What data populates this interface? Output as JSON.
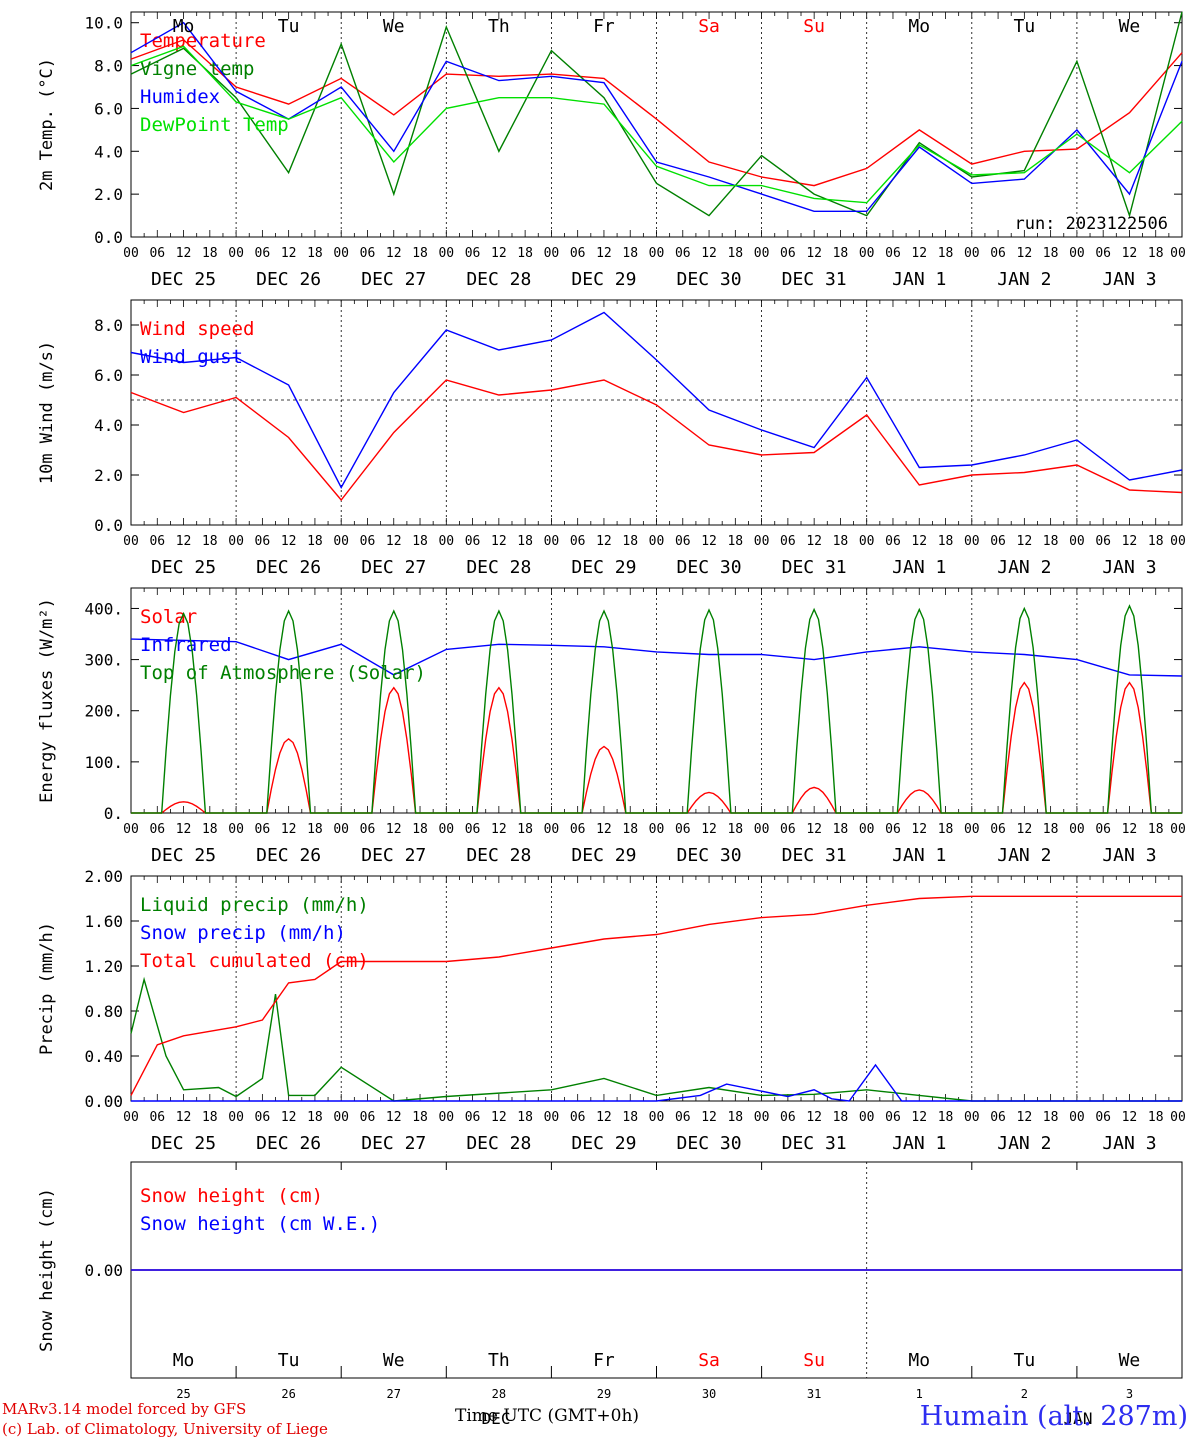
{
  "footer": {
    "model": "MARv3.14 model forced by GFS",
    "credit": "(c) Lab. of Climatology, University of Liege",
    "time_axis": "Time UTC (GMT+0h)",
    "month": "DEC",
    "month2": "JAN",
    "station": "Humain (alt. 287m)"
  },
  "days": {
    "weekdays": [
      "Mo",
      "Tu",
      "We",
      "Th",
      "Fr",
      "Sa",
      "Su",
      "Mo",
      "Tu",
      "We"
    ],
    "weekend_color": "#ff0000",
    "dates": [
      "DEC 25",
      "DEC 26",
      "DEC 27",
      "DEC 28",
      "DEC 29",
      "DEC 30",
      "DEC 31",
      "JAN 1",
      "JAN 2",
      "JAN 3"
    ],
    "day_numbers": [
      "25",
      "26",
      "27",
      "28",
      "29",
      "30",
      "31",
      "1",
      "2",
      "3"
    ],
    "hours": [
      "00",
      "06",
      "12",
      "18"
    ],
    "last_hour": "00"
  },
  "chart_data": [
    {
      "type": "line",
      "ylabel": "2m Temp. (°C)",
      "ylim": [
        0,
        10
      ],
      "yticks": [
        "0.0",
        "2.0",
        "4.0",
        "6.0",
        "8.0",
        "10.0"
      ],
      "run": "run: 2023122506",
      "series": [
        {
          "name": "Temperature",
          "color": "#ff0000",
          "x": [
            0,
            12,
            24,
            36,
            48,
            60,
            72,
            84,
            96,
            108,
            120,
            132,
            144,
            156,
            168,
            180,
            192,
            204,
            216,
            228,
            240
          ],
          "y": [
            8.3,
            9.2,
            7.0,
            6.2,
            7.4,
            5.7,
            7.6,
            7.5,
            7.6,
            7.4,
            5.5,
            3.5,
            2.8,
            2.4,
            3.2,
            5.0,
            3.4,
            4.0,
            4.1,
            5.8,
            8.6
          ]
        },
        {
          "name": "Vigne temp",
          "color": "#008000",
          "x": [
            0,
            12,
            24,
            36,
            48,
            60,
            72,
            84,
            96,
            108,
            120,
            132,
            144,
            156,
            168,
            180,
            192,
            204,
            216,
            228,
            240
          ],
          "y": [
            7.6,
            8.8,
            6.5,
            3.0,
            9.0,
            2.0,
            9.8,
            4.0,
            8.7,
            6.5,
            2.5,
            1.0,
            3.8,
            2.0,
            1.0,
            4.4,
            2.8,
            3.1,
            8.2,
            1.0,
            10.5
          ]
        },
        {
          "name": "Humidex",
          "color": "#0000ff",
          "x": [
            0,
            12,
            24,
            36,
            48,
            60,
            72,
            84,
            96,
            108,
            120,
            132,
            144,
            156,
            168,
            180,
            192,
            204,
            216,
            228,
            240
          ],
          "y": [
            8.6,
            10.0,
            6.8,
            5.5,
            7.0,
            4.0,
            8.2,
            7.3,
            7.5,
            7.2,
            3.5,
            2.8,
            2.0,
            1.2,
            1.2,
            4.2,
            2.5,
            2.7,
            5.0,
            2.0,
            8.2
          ]
        },
        {
          "name": "DewPoint Temp",
          "color": "#00e000",
          "x": [
            0,
            12,
            24,
            36,
            48,
            60,
            72,
            84,
            96,
            108,
            120,
            132,
            144,
            156,
            168,
            180,
            192,
            204,
            216,
            228,
            240
          ],
          "y": [
            8.0,
            8.9,
            6.3,
            5.5,
            6.5,
            3.5,
            6.0,
            6.5,
            6.5,
            6.2,
            3.3,
            2.4,
            2.4,
            1.8,
            1.6,
            4.3,
            2.9,
            3.0,
            4.8,
            3.0,
            5.4
          ]
        }
      ]
    },
    {
      "type": "line",
      "ylabel": "10m Wind (m/s)",
      "ylim": [
        0,
        9
      ],
      "yticks": [
        "0.0",
        "2.0",
        "4.0",
        "6.0",
        "8.0"
      ],
      "reference_line": 5,
      "series": [
        {
          "name": "Wind speed",
          "color": "#ff0000",
          "x": [
            0,
            12,
            24,
            36,
            48,
            60,
            72,
            84,
            96,
            108,
            120,
            132,
            144,
            156,
            168,
            180,
            192,
            204,
            216,
            228,
            240
          ],
          "y": [
            5.3,
            4.5,
            5.1,
            3.5,
            1.0,
            3.7,
            5.8,
            5.2,
            5.4,
            5.8,
            4.8,
            3.2,
            2.8,
            2.9,
            4.4,
            1.6,
            2.0,
            2.1,
            2.4,
            1.4,
            1.3
          ]
        },
        {
          "name": "Wind gust",
          "color": "#0000ff",
          "x": [
            0,
            12,
            24,
            36,
            48,
            60,
            72,
            84,
            96,
            108,
            120,
            132,
            144,
            156,
            168,
            180,
            192,
            204,
            216,
            228,
            240
          ],
          "y": [
            6.9,
            6.5,
            6.7,
            5.6,
            1.5,
            5.3,
            7.8,
            7.0,
            7.4,
            8.5,
            6.6,
            4.6,
            3.8,
            3.1,
            5.9,
            2.3,
            2.4,
            2.8,
            3.4,
            1.8,
            2.2
          ]
        }
      ]
    },
    {
      "type": "line",
      "ylabel": "Energy fluxes (W/m²)",
      "ylim": [
        0,
        440
      ],
      "yticks": [
        "0.",
        "100.",
        "200.",
        "300.",
        "400."
      ],
      "series": [
        {
          "name": "Solar",
          "color": "#ff0000",
          "peaks": [
            22,
            145,
            245,
            245,
            130,
            40,
            50,
            45,
            255,
            255
          ]
        },
        {
          "name": "Infrared",
          "color": "#0000ff",
          "x": [
            0,
            24,
            36,
            48,
            60,
            72,
            84,
            96,
            108,
            120,
            132,
            144,
            156,
            168,
            180,
            192,
            204,
            216,
            228,
            240
          ],
          "y": [
            340,
            335,
            300,
            330,
            270,
            320,
            330,
            328,
            325,
            315,
            310,
            310,
            300,
            315,
            325,
            315,
            310,
            300,
            270,
            268
          ]
        },
        {
          "name": "Top of Atmosphere (Solar)",
          "color": "#008000",
          "peaks": [
            390,
            395,
            395,
            395,
            395,
            397,
            398,
            398,
            400,
            405
          ]
        }
      ]
    },
    {
      "type": "line",
      "ylabel": "Precip (mm/h)",
      "ylim": [
        0,
        2
      ],
      "yticks": [
        "0.00",
        "0.40",
        "0.80",
        "1.20",
        "1.60",
        "2.00"
      ],
      "series": [
        {
          "name": "Liquid precip (mm/h)",
          "color": "#008000",
          "x": [
            0,
            3,
            8,
            12,
            20,
            24,
            30,
            33,
            36,
            42,
            48,
            60,
            72,
            96,
            108,
            120,
            132,
            144,
            156,
            168,
            180,
            192,
            240
          ],
          "y": [
            0.6,
            1.08,
            0.4,
            0.1,
            0.12,
            0.04,
            0.2,
            0.95,
            0.05,
            0.05,
            0.3,
            0.0,
            0.04,
            0.1,
            0.2,
            0.05,
            0.12,
            0.05,
            0.06,
            0.1,
            0.05,
            0.0,
            0.0
          ]
        },
        {
          "name": "Snow precip (mm/h)",
          "color": "#0000ff",
          "x": [
            0,
            120,
            130,
            136,
            150,
            156,
            160,
            164,
            170,
            176,
            240
          ],
          "y": [
            0,
            0,
            0.05,
            0.15,
            0.04,
            0.1,
            0.02,
            0.0,
            0.32,
            0.0,
            0
          ]
        },
        {
          "name": "Total cumulated (cm)",
          "color": "#ff0000",
          "x": [
            0,
            6,
            12,
            24,
            30,
            36,
            42,
            48,
            60,
            72,
            84,
            96,
            108,
            120,
            132,
            144,
            156,
            168,
            180,
            192,
            204,
            216,
            240
          ],
          "y": [
            0.05,
            0.5,
            0.58,
            0.66,
            0.72,
            1.05,
            1.08,
            1.24,
            1.24,
            1.24,
            1.28,
            1.36,
            1.44,
            1.48,
            1.57,
            1.63,
            1.66,
            1.74,
            1.8,
            1.82,
            1.82,
            1.82,
            1.82
          ]
        }
      ]
    },
    {
      "type": "line",
      "ylabel": "Snow height (cm)",
      "ylim": [
        -1,
        1
      ],
      "yticks": [
        "0.00"
      ],
      "series": [
        {
          "name": "Snow height (cm)",
          "color": "#ff0000",
          "x": [
            0,
            240
          ],
          "y": [
            0,
            0
          ]
        },
        {
          "name": "Snow height (cm W.E.)",
          "color": "#0000ff",
          "x": [
            0,
            240
          ],
          "y": [
            0,
            0
          ]
        }
      ]
    }
  ]
}
